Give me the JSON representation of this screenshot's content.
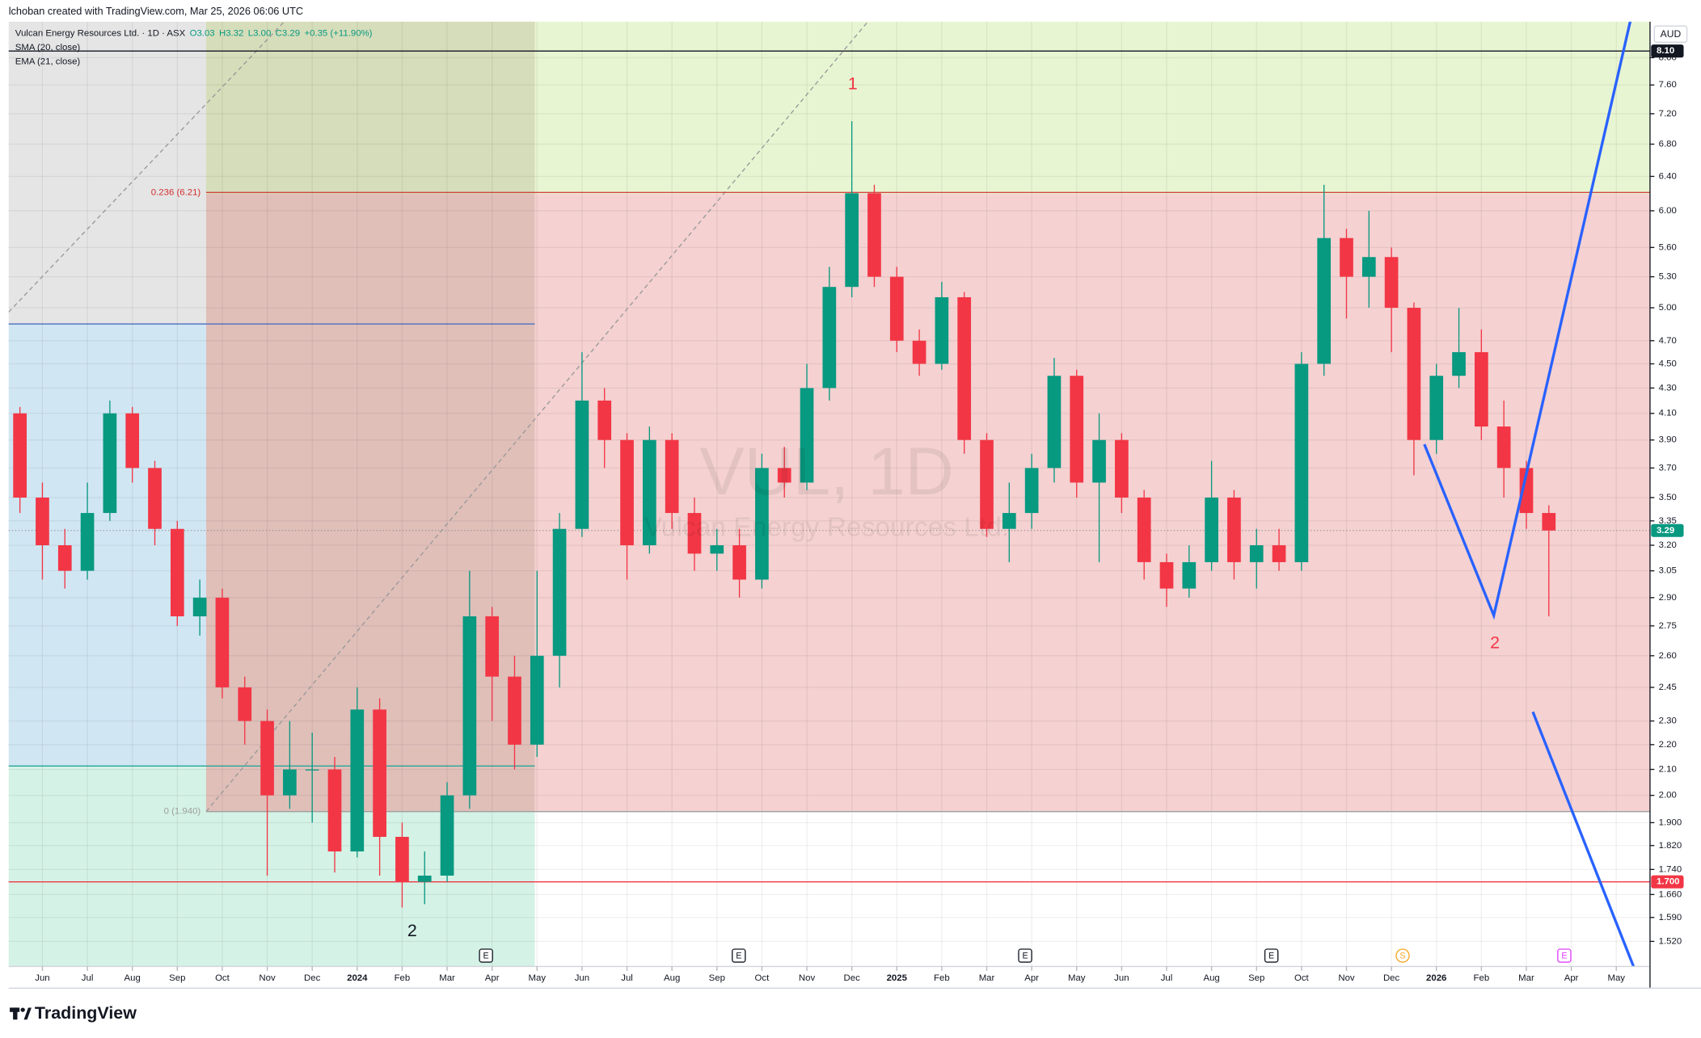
{
  "chart_data": {
    "type": "candlestick",
    "credit": "lchoban created with TradingView.com, Mar 25, 2026 06:06 UTC",
    "legend": {
      "name": "Vulcan Energy Resources Ltd. · 1D · ASX",
      "open": "O3.03",
      "high": "H3.32",
      "low": "L3.00",
      "close": "C3.29",
      "change": "+0.35 (+11.90%)"
    },
    "indicators": [
      "SMA (20, close)",
      "EMA (21, close)"
    ],
    "watermark": {
      "symbol": "VUL, 1D",
      "name": "Vulcan Energy Resources Ltd."
    },
    "currency": "AUD",
    "brand": "TradingView",
    "log_scale": true,
    "grid": true,
    "up_color": "#089981",
    "down_color": "#f23645",
    "categories": [
      null,
      "Jun",
      null,
      "Jul",
      null,
      "Aug",
      null,
      "Sep",
      null,
      "Oct",
      null,
      "Nov",
      null,
      "Dec",
      null,
      "2024",
      null,
      "Feb",
      null,
      "Mar",
      null,
      "Apr",
      null,
      "May",
      null,
      "Jun",
      null,
      "Jul",
      null,
      "Aug",
      null,
      "Sep",
      null,
      "Oct",
      null,
      "Nov",
      null,
      "Dec",
      null,
      "2025",
      null,
      "Feb",
      null,
      "Mar",
      null,
      "Apr",
      null,
      "May",
      null,
      "Jun",
      null,
      "Jul",
      null,
      "Aug",
      null,
      "Sep",
      null,
      "Oct",
      null,
      "Nov",
      null,
      "Dec",
      null,
      "2026",
      null,
      "Feb",
      null,
      "Mar",
      null,
      "Apr",
      null,
      "May",
      null
    ],
    "open": [
      4.1,
      3.5,
      3.2,
      3.05,
      3.4,
      4.1,
      3.7,
      3.3,
      2.8,
      2.9,
      2.45,
      2.3,
      2.0,
      2.1,
      2.1,
      1.8,
      2.35,
      1.85,
      1.7,
      1.72,
      2.0,
      2.8,
      2.5,
      2.2,
      2.6,
      3.3,
      4.2,
      3.9,
      3.2,
      3.9,
      3.4,
      3.15,
      3.2,
      3.0,
      3.7,
      3.6,
      4.3,
      5.2,
      6.2,
      5.3,
      4.7,
      4.5,
      5.1,
      3.9,
      3.3,
      3.4,
      3.7,
      4.4,
      3.6,
      3.9,
      3.5,
      3.1,
      2.95,
      3.1,
      3.5,
      3.1,
      3.2,
      3.1,
      4.5,
      5.7,
      5.3,
      5.5,
      5.0,
      3.9,
      4.4,
      4.6,
      4.0,
      3.7,
      3.4,
      null,
      null,
      null,
      null
    ],
    "high": [
      4.15,
      3.6,
      3.3,
      3.6,
      4.2,
      4.15,
      3.75,
      3.35,
      3.0,
      2.95,
      2.5,
      2.35,
      2.3,
      2.25,
      2.15,
      2.45,
      2.4,
      1.9,
      1.8,
      2.05,
      3.05,
      2.85,
      2.6,
      3.05,
      3.4,
      4.6,
      4.3,
      3.95,
      4.0,
      3.95,
      3.5,
      3.3,
      3.3,
      3.8,
      3.85,
      4.5,
      5.4,
      7.1,
      6.3,
      5.4,
      4.8,
      5.25,
      5.15,
      3.95,
      3.6,
      3.8,
      4.55,
      4.45,
      4.1,
      3.95,
      3.55,
      3.15,
      3.2,
      3.75,
      3.55,
      3.3,
      3.3,
      4.6,
      6.3,
      5.8,
      6.0,
      5.6,
      5.05,
      4.5,
      5.0,
      4.8,
      4.2,
      3.75,
      3.45,
      null,
      null,
      null,
      null
    ],
    "low": [
      3.4,
      3.0,
      2.95,
      3.0,
      3.35,
      3.6,
      3.2,
      2.75,
      2.7,
      2.4,
      2.2,
      1.72,
      1.95,
      1.9,
      1.73,
      1.78,
      1.72,
      1.62,
      1.63,
      1.7,
      1.95,
      2.3,
      2.1,
      2.15,
      2.45,
      3.25,
      3.7,
      3.0,
      3.15,
      3.3,
      3.05,
      3.05,
      2.9,
      2.95,
      3.5,
      3.55,
      4.2,
      5.1,
      5.2,
      4.6,
      4.4,
      4.45,
      3.8,
      3.25,
      3.1,
      3.3,
      3.6,
      3.5,
      3.1,
      3.4,
      3.0,
      2.85,
      2.9,
      3.05,
      3.0,
      2.95,
      3.05,
      3.05,
      4.4,
      4.9,
      5.0,
      4.6,
      3.65,
      3.8,
      4.3,
      3.9,
      3.5,
      3.3,
      2.8,
      null,
      null,
      null,
      null
    ],
    "close": [
      3.5,
      3.2,
      3.05,
      3.4,
      4.1,
      3.7,
      3.3,
      2.8,
      2.9,
      2.45,
      2.3,
      2.0,
      2.1,
      2.1,
      1.8,
      2.35,
      1.85,
      1.7,
      1.72,
      2.0,
      2.8,
      2.5,
      2.2,
      2.6,
      3.3,
      4.2,
      3.9,
      3.2,
      3.9,
      3.4,
      3.15,
      3.2,
      3.0,
      3.7,
      3.6,
      4.3,
      5.2,
      6.2,
      5.3,
      4.7,
      4.5,
      5.1,
      3.9,
      3.3,
      3.4,
      3.7,
      4.4,
      3.6,
      3.9,
      3.5,
      3.1,
      2.95,
      3.1,
      3.5,
      3.1,
      3.2,
      3.1,
      4.5,
      5.7,
      5.3,
      5.5,
      5.0,
      3.9,
      4.4,
      4.6,
      4.0,
      3.7,
      3.4,
      3.29,
      null,
      null,
      null,
      null
    ],
    "ylim": [
      1.45,
      8.56
    ],
    "yticks": [
      {
        "value": 8,
        "label": "8.00"
      },
      {
        "value": 7.6,
        "label": "7.60"
      },
      {
        "value": 7.2,
        "label": "7.20"
      },
      {
        "value": 6.8,
        "label": "6.80"
      },
      {
        "value": 6.4,
        "label": "6.40"
      },
      {
        "value": 6,
        "label": "6.00"
      },
      {
        "value": 5.6,
        "label": "5.60"
      },
      {
        "value": 5.3,
        "label": "5.30"
      },
      {
        "value": 5,
        "label": "5.00"
      },
      {
        "value": 4.7,
        "label": "4.70"
      },
      {
        "value": 4.5,
        "label": "4.50"
      },
      {
        "value": 4.3,
        "label": "4.30"
      },
      {
        "value": 4.1,
        "label": "4.10"
      },
      {
        "value": 3.9,
        "label": "3.90"
      },
      {
        "value": 3.7,
        "label": "3.70"
      },
      {
        "value": 3.5,
        "label": "3.50"
      },
      3.35,
      {
        "value": 3.2,
        "label": "3.20"
      },
      3.05,
      {
        "value": 2.9,
        "label": "2.90"
      },
      2.75,
      {
        "value": 2.6,
        "label": "2.60"
      },
      2.45,
      {
        "value": 2.3,
        "label": "2.30"
      },
      {
        "value": 2.2,
        "label": "2.20"
      },
      {
        "value": 2.1,
        "label": "2.10"
      },
      {
        "value": 2,
        "label": "2.00"
      },
      {
        "value": 1.9,
        "label": "1.900"
      },
      {
        "value": 1.82,
        "label": "1.820"
      },
      {
        "value": 1.74,
        "label": "1.740"
      },
      {
        "value": 1.66,
        "label": "1.660"
      },
      {
        "value": 1.59,
        "label": "1.590"
      },
      {
        "value": 1.52,
        "label": "1.520"
      }
    ],
    "fib_levels": [
      {
        "value": 6.21,
        "label": "0.236 (6.21)",
        "color": "#d32f2f"
      },
      {
        "value": 1.94,
        "label": "0 (1.940)",
        "color": "#9e9e9e"
      }
    ],
    "price_lines": [
      {
        "value": 8.1,
        "label": "8.10",
        "color": "#131722"
      },
      {
        "value": 3.29,
        "color": "#089981"
      },
      {
        "value": 1.7,
        "label": "1.700",
        "color": "#f23645"
      }
    ],
    "annotations": [
      {
        "text": "1",
        "color": "#f23645"
      },
      {
        "text": "2",
        "color": "#131722"
      },
      {
        "text": "2",
        "color": "#f23645"
      }
    ],
    "events": [
      {
        "text": "E",
        "color": "#131722"
      },
      {
        "text": "E",
        "color": "#131722"
      },
      {
        "text": "E",
        "color": "#131722"
      },
      {
        "text": "E",
        "color": "#131722"
      },
      {
        "text": "S",
        "color": "#f5a623"
      },
      {
        "text": "E",
        "color": "#e040fb"
      }
    ]
  }
}
